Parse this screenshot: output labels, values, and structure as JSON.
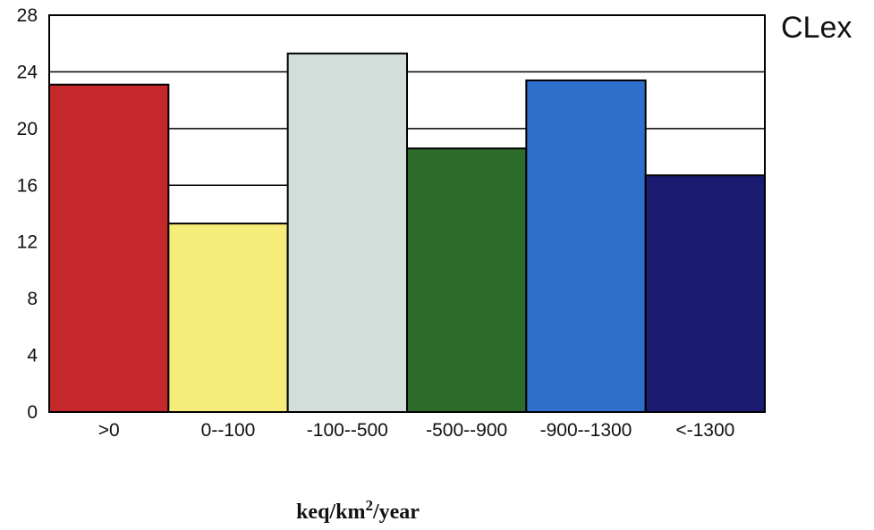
{
  "chart_data": {
    "type": "bar",
    "title": "",
    "series_label": "CLex",
    "categories": [
      ">0",
      "0--100",
      "-100--500",
      "-500--900",
      "-900--1300",
      "<-1300"
    ],
    "values": [
      23.1,
      13.3,
      25.3,
      18.6,
      23.4,
      16.7
    ],
    "bar_colors": [
      "#c4282b",
      "#f6ec7a",
      "#d3dedb",
      "#2d6b2b",
      "#2e6fcc",
      "#1c1b72"
    ],
    "ylim": [
      0,
      28
    ],
    "yticks": [
      0,
      4,
      8,
      12,
      16,
      20,
      24,
      28
    ],
    "ylabel": "",
    "xlabel": {
      "prefix": "keq/km",
      "superscript": "2",
      "suffix": "/year"
    },
    "grid": true,
    "legend": "none"
  }
}
